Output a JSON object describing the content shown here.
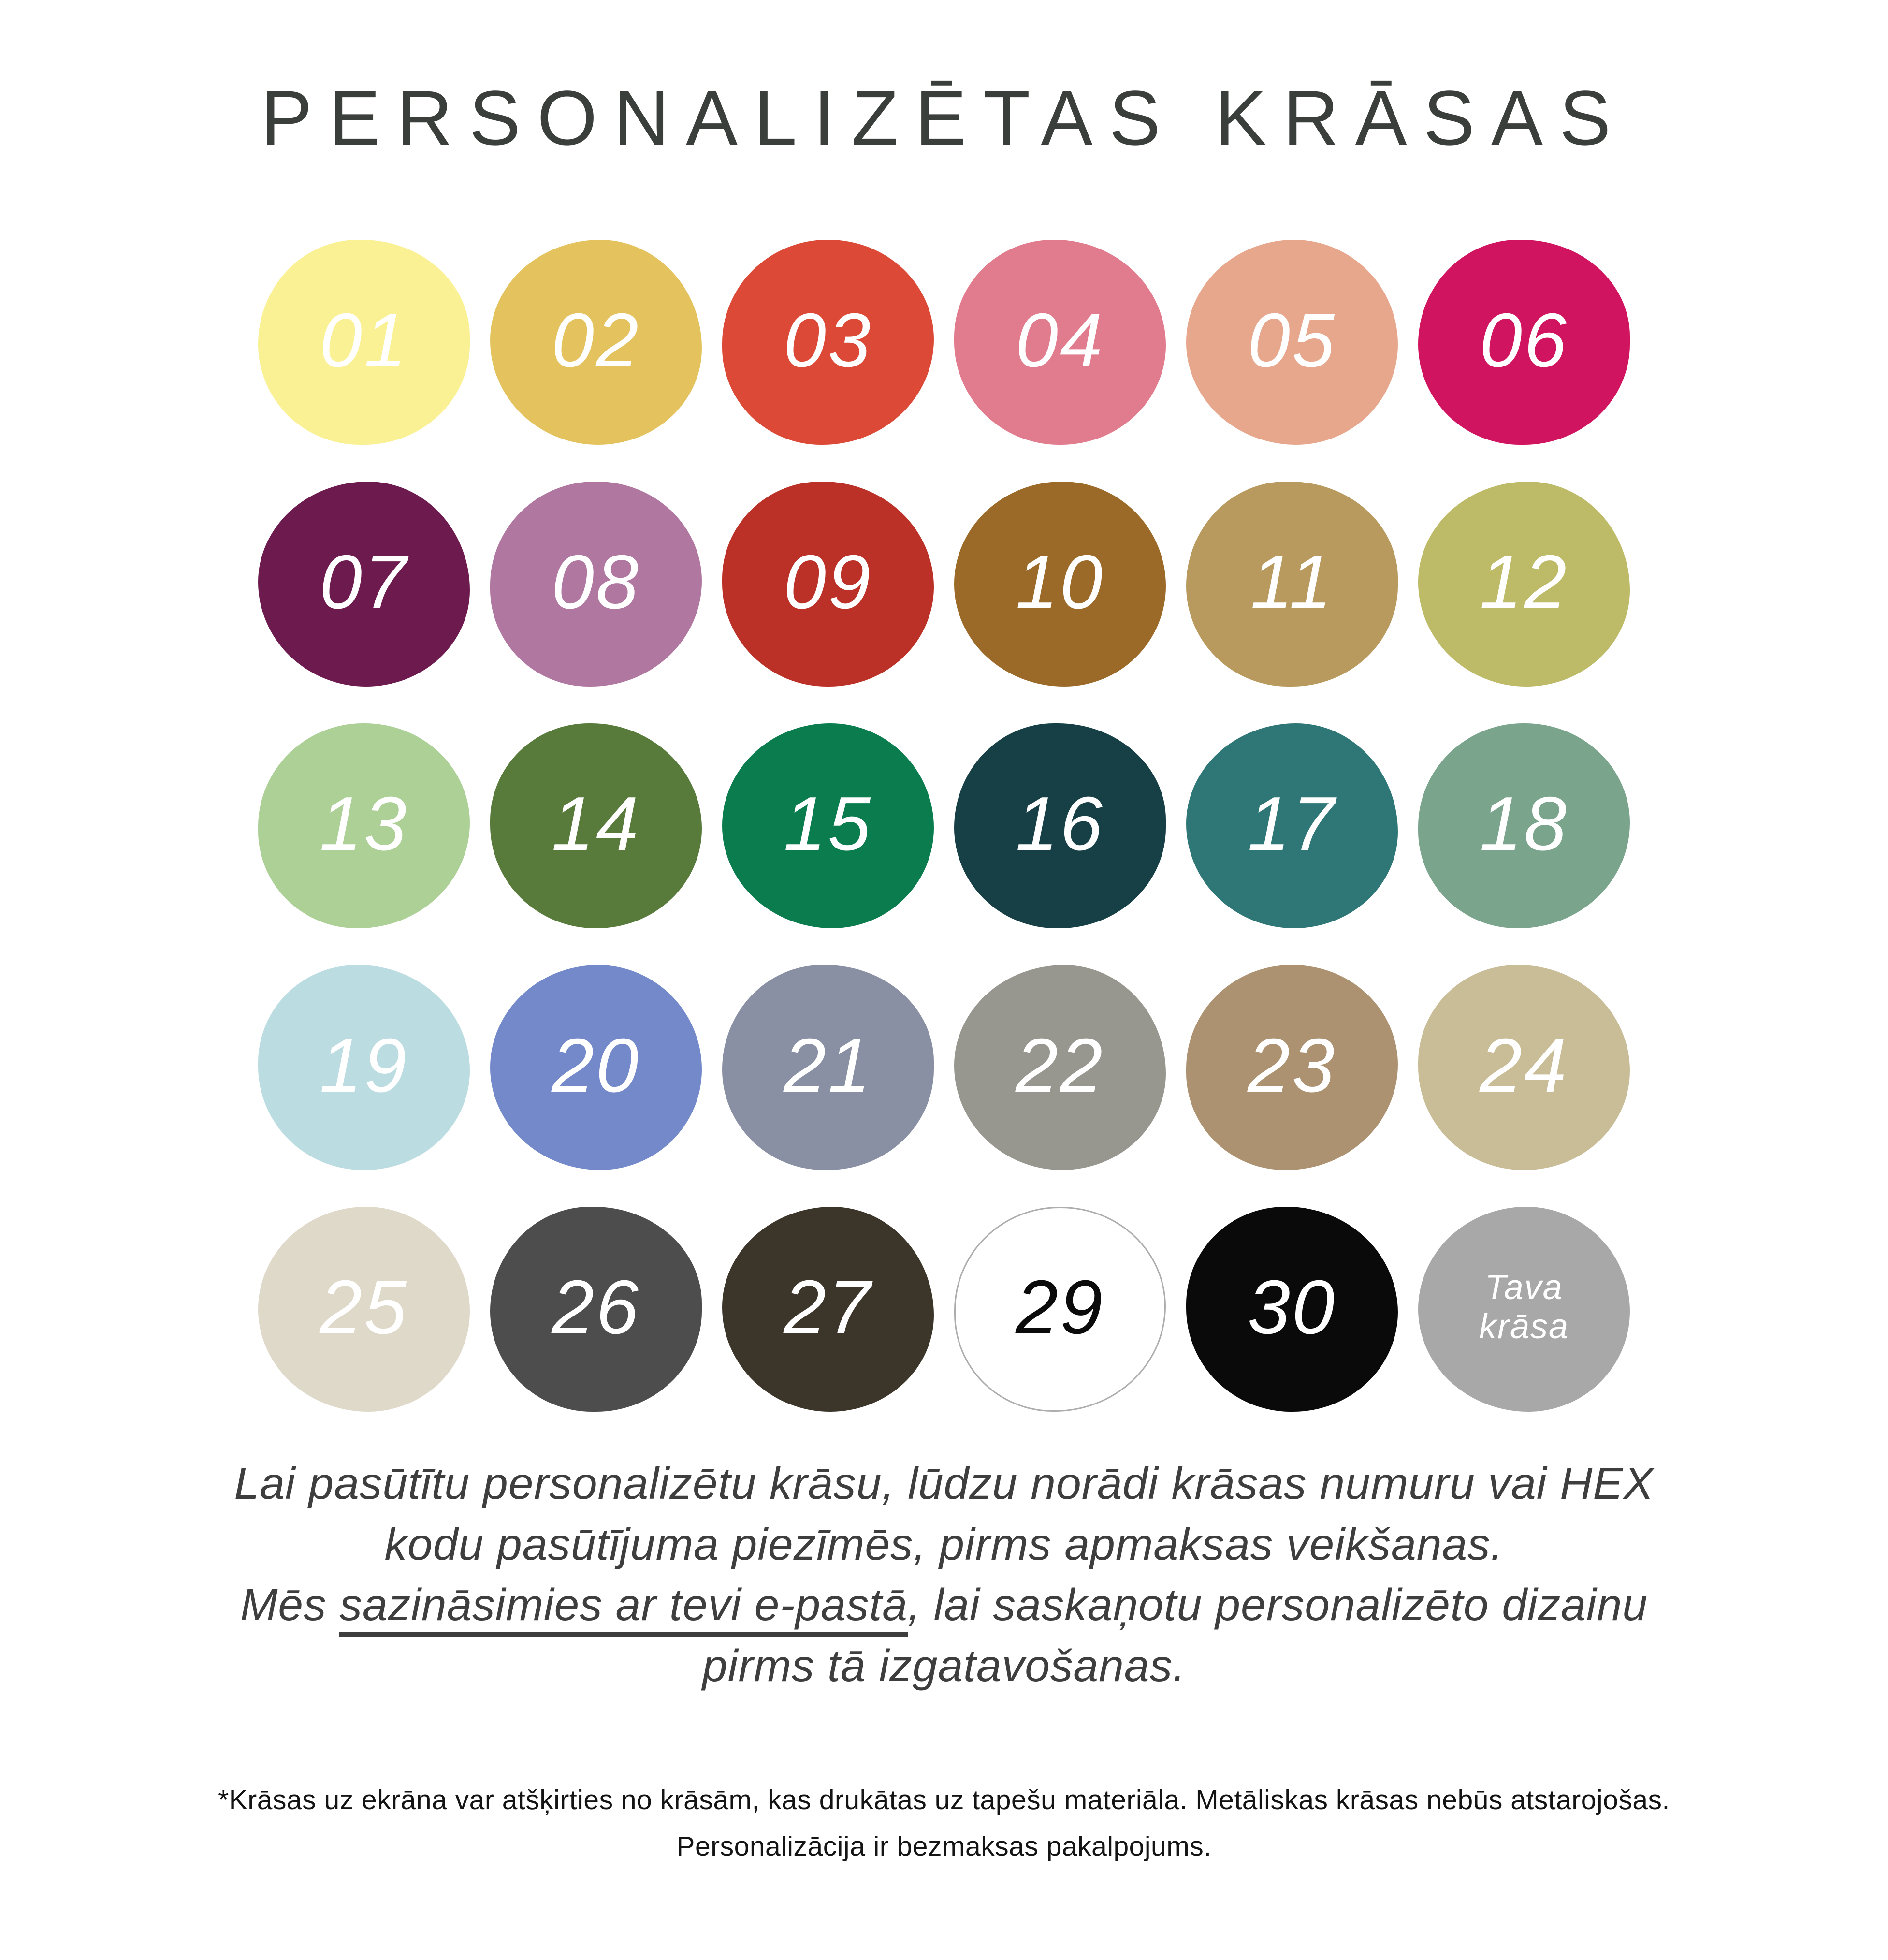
{
  "title": "PERSONALIZĒTAS KRĀSAS",
  "colors": {
    "title_text": "#3B3F3C",
    "paragraph_text": "#3E3E3E",
    "footnote_text": "#141414",
    "background": "#FFFFFF"
  },
  "swatches": [
    {
      "label": "01",
      "color": "#FAF195",
      "label_color": "#FFFFFF"
    },
    {
      "label": "02",
      "color": "#E4C35E",
      "label_color": "#FFFFFF"
    },
    {
      "label": "03",
      "color": "#DC4A37",
      "label_color": "#FFFFFF"
    },
    {
      "label": "04",
      "color": "#E17B8E",
      "label_color": "#FFFFFF"
    },
    {
      "label": "05",
      "color": "#E7A78D",
      "label_color": "#FFFFFF"
    },
    {
      "label": "06",
      "color": "#D0145F",
      "label_color": "#FFFFFF"
    },
    {
      "label": "07",
      "color": "#6D1A4E",
      "label_color": "#FFFFFF"
    },
    {
      "label": "08",
      "color": "#B077A0",
      "label_color": "#FFFFFF"
    },
    {
      "label": "09",
      "color": "#BC3127",
      "label_color": "#FFFFFF"
    },
    {
      "label": "10",
      "color": "#9C6A28",
      "label_color": "#FFFFFF"
    },
    {
      "label": "11",
      "color": "#B8995E",
      "label_color": "#FFFFFF"
    },
    {
      "label": "12",
      "color": "#BDBA68",
      "label_color": "#FFFFFF"
    },
    {
      "label": "13",
      "color": "#ADD097",
      "label_color": "#FFFFFF"
    },
    {
      "label": "14",
      "color": "#587B3B",
      "label_color": "#FFFFFF"
    },
    {
      "label": "15",
      "color": "#0B7C4E",
      "label_color": "#FFFFFF"
    },
    {
      "label": "16",
      "color": "#164045",
      "label_color": "#FFFFFF"
    },
    {
      "label": "17",
      "color": "#2F7776",
      "label_color": "#FFFFFF"
    },
    {
      "label": "18",
      "color": "#7AA48C",
      "label_color": "#FFFFFF"
    },
    {
      "label": "19",
      "color": "#BBDDE2",
      "label_color": "#FFFFFF"
    },
    {
      "label": "20",
      "color": "#7389C9",
      "label_color": "#FFFFFF"
    },
    {
      "label": "21",
      "color": "#8A90A4",
      "label_color": "#FFFFFF"
    },
    {
      "label": "22",
      "color": "#98978F",
      "label_color": "#FFFFFF"
    },
    {
      "label": "23",
      "color": "#AC9271",
      "label_color": "#FFFFFF"
    },
    {
      "label": "24",
      "color": "#C9BD97",
      "label_color": "#FFFFFF"
    },
    {
      "label": "25",
      "color": "#DFD9CA",
      "label_color": "#FFFFFF"
    },
    {
      "label": "26",
      "color": "#4D4D4D",
      "label_color": "#FFFFFF"
    },
    {
      "label": "27",
      "color": "#3C3529",
      "label_color": "#FFFFFF"
    },
    {
      "label": "29",
      "color": "#FFFFFF",
      "label_color": "#0B0B0B",
      "border": "#ADADAD"
    },
    {
      "label": "30",
      "color": "#0A0A0A",
      "label_color": "#FFFFFF"
    },
    {
      "label": "Tava krāsa",
      "color": "#A9A8A8",
      "label_color": "#FFFFFF",
      "small": true
    }
  ],
  "paragraph": {
    "line1": "Lai pasūtītu personalizētu krāsu, lūdzu norādi krāsas numuru vai HEX",
    "line2": "kodu pasūtījuma piezīmēs, pirms apmaksas veikšanas.",
    "line3_prefix": "Mēs ",
    "line3_underlined": "sazināsimies ar tevi e-pastā",
    "line3_suffix": ", lai saskaņotu personalizēto dizainu",
    "line4": "pirms tā izgatavošanas."
  },
  "footnote": {
    "line1": "*Krāsas uz ekrāna var atšķirties no krāsām, kas drukātas uz tapešu materiāla. Metāliskas krāsas nebūs atstarojošas.",
    "line2": "Personalizācija ir bezmaksas pakalpojums."
  }
}
